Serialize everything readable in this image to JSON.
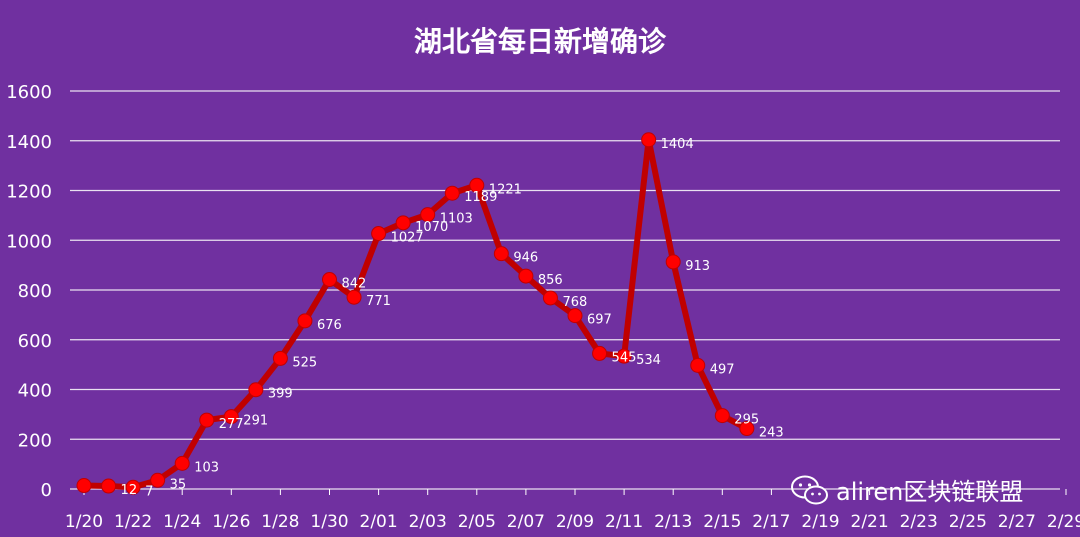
{
  "chart_data": {
    "type": "line",
    "title": "湖北省每日新增确诊",
    "xlabel": "",
    "ylabel": "",
    "ylim": [
      0,
      1600
    ],
    "yticks": [
      0,
      200,
      400,
      600,
      800,
      1000,
      1200,
      1400,
      1600
    ],
    "x_tick_labels": [
      "1/20",
      "1/22",
      "1/24",
      "1/26",
      "1/28",
      "1/30",
      "2/01",
      "2/03",
      "2/05",
      "2/07",
      "2/09",
      "2/11",
      "2/13",
      "2/15",
      "2/17",
      "2/19",
      "2/21",
      "2/23",
      "2/25",
      "2/27",
      "2/29"
    ],
    "grid": true,
    "legend": "none",
    "series": [
      {
        "x": [
          "1/20",
          "1/21",
          "1/22",
          "1/23",
          "1/24",
          "1/25",
          "1/26",
          "1/27",
          "1/28",
          "1/29",
          "1/30",
          "1/31",
          "2/01",
          "2/02",
          "2/03",
          "2/04",
          "2/05",
          "2/06",
          "2/07",
          "2/08",
          "2/09",
          "2/10",
          "2/11",
          "2/12",
          "2/13",
          "2/14",
          "2/15",
          "2/16"
        ],
        "values": [
          14,
          12,
          7,
          35,
          103,
          277,
          291,
          399,
          525,
          676,
          842,
          771,
          1027,
          1070,
          1103,
          1189,
          1221,
          946,
          856,
          768,
          697,
          545,
          534,
          1404,
          913,
          497,
          295,
          243
        ],
        "data_labels": [
          "",
          "12",
          "7",
          "35",
          "103",
          "277",
          "291",
          "399",
          "525",
          "676",
          "842",
          "771",
          "1027",
          "1070",
          "1103",
          "1189",
          "1221",
          "946",
          "856",
          "768",
          "697",
          "545",
          "534",
          "1404",
          "913",
          "497",
          "295",
          "243"
        ],
        "line_color": "#c00000",
        "marker_color": "#ff0000"
      }
    ]
  },
  "watermark": {
    "text": "aliren区块链联盟",
    "icon": "wechat-icon"
  },
  "colors": {
    "background": "#7030a0",
    "grid": "#ffffff",
    "text": "#ffffff"
  }
}
